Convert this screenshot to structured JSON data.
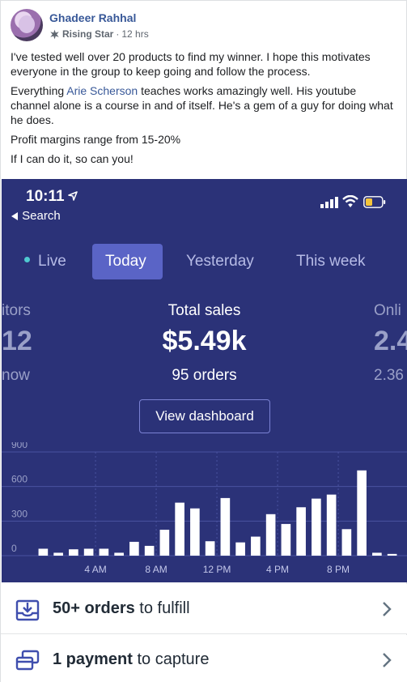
{
  "post": {
    "author": "Ghadeer Rahhal",
    "badge": "Rising Star",
    "separator": "·",
    "time": "12 hrs",
    "paragraphs": {
      "p1": "I've tested well over 20 products to find my winner. I hope this motivates everyone in the group to keep going and follow the process.",
      "p2_before": "Everything ",
      "p2_link": "Arie Scherson",
      "p2_after": " teaches works amazingly well. His youtube channel alone is a course in and of itself. He's a gem of a guy for doing what he does.",
      "p3": "Profit margins range from 15-20%",
      "p4": "If I can do it, so can you!"
    }
  },
  "phone": {
    "time": "10:11",
    "back_label": "Search",
    "tabs": {
      "live": "Live",
      "today": "Today",
      "yesterday": "Yesterday",
      "this_week": "This week"
    },
    "left_stat": {
      "label": "itors",
      "value": "12",
      "sub": "now"
    },
    "center_stat": {
      "label": "Total sales",
      "value": "$5.49k",
      "orders": "95 orders"
    },
    "right_stat": {
      "label": "Onli",
      "value": "2.4",
      "sub": "2.36"
    },
    "dashboard_button": "View dashboard",
    "colors": {
      "background": "#2b3278",
      "active_tab": "#5a64c6",
      "bar": "#ffffff",
      "grid": "#4a52a0",
      "live_dot": "#4fc9d0"
    }
  },
  "chart_data": {
    "type": "bar",
    "title": "",
    "xlabel": "",
    "ylabel": "",
    "ylim": [
      0,
      900
    ],
    "yticks": [
      "900",
      "600",
      "300",
      "0"
    ],
    "xticks": [
      "4 AM",
      "8 AM",
      "12 PM",
      "4 PM",
      "8 PM"
    ],
    "categories": [
      "12 AM",
      "1 AM",
      "2 AM",
      "3 AM",
      "4 AM",
      "5 AM",
      "6 AM",
      "7 AM",
      "8 AM",
      "9 AM",
      "10 AM",
      "11 AM",
      "12 PM",
      "1 PM",
      "2 PM",
      "3 PM",
      "4 PM",
      "5 PM",
      "6 PM",
      "7 PM",
      "8 PM",
      "9 PM",
      "10 PM",
      "11 PM"
    ],
    "values": [
      60,
      25,
      55,
      60,
      60,
      25,
      120,
      85,
      225,
      460,
      410,
      125,
      500,
      115,
      165,
      360,
      275,
      420,
      495,
      530,
      230,
      740,
      25,
      15
    ]
  },
  "actions": {
    "fulfill": {
      "bold": "50+ orders",
      "rest": " to fulfill"
    },
    "capture": {
      "bold": "1 payment",
      "rest": " to capture"
    }
  }
}
